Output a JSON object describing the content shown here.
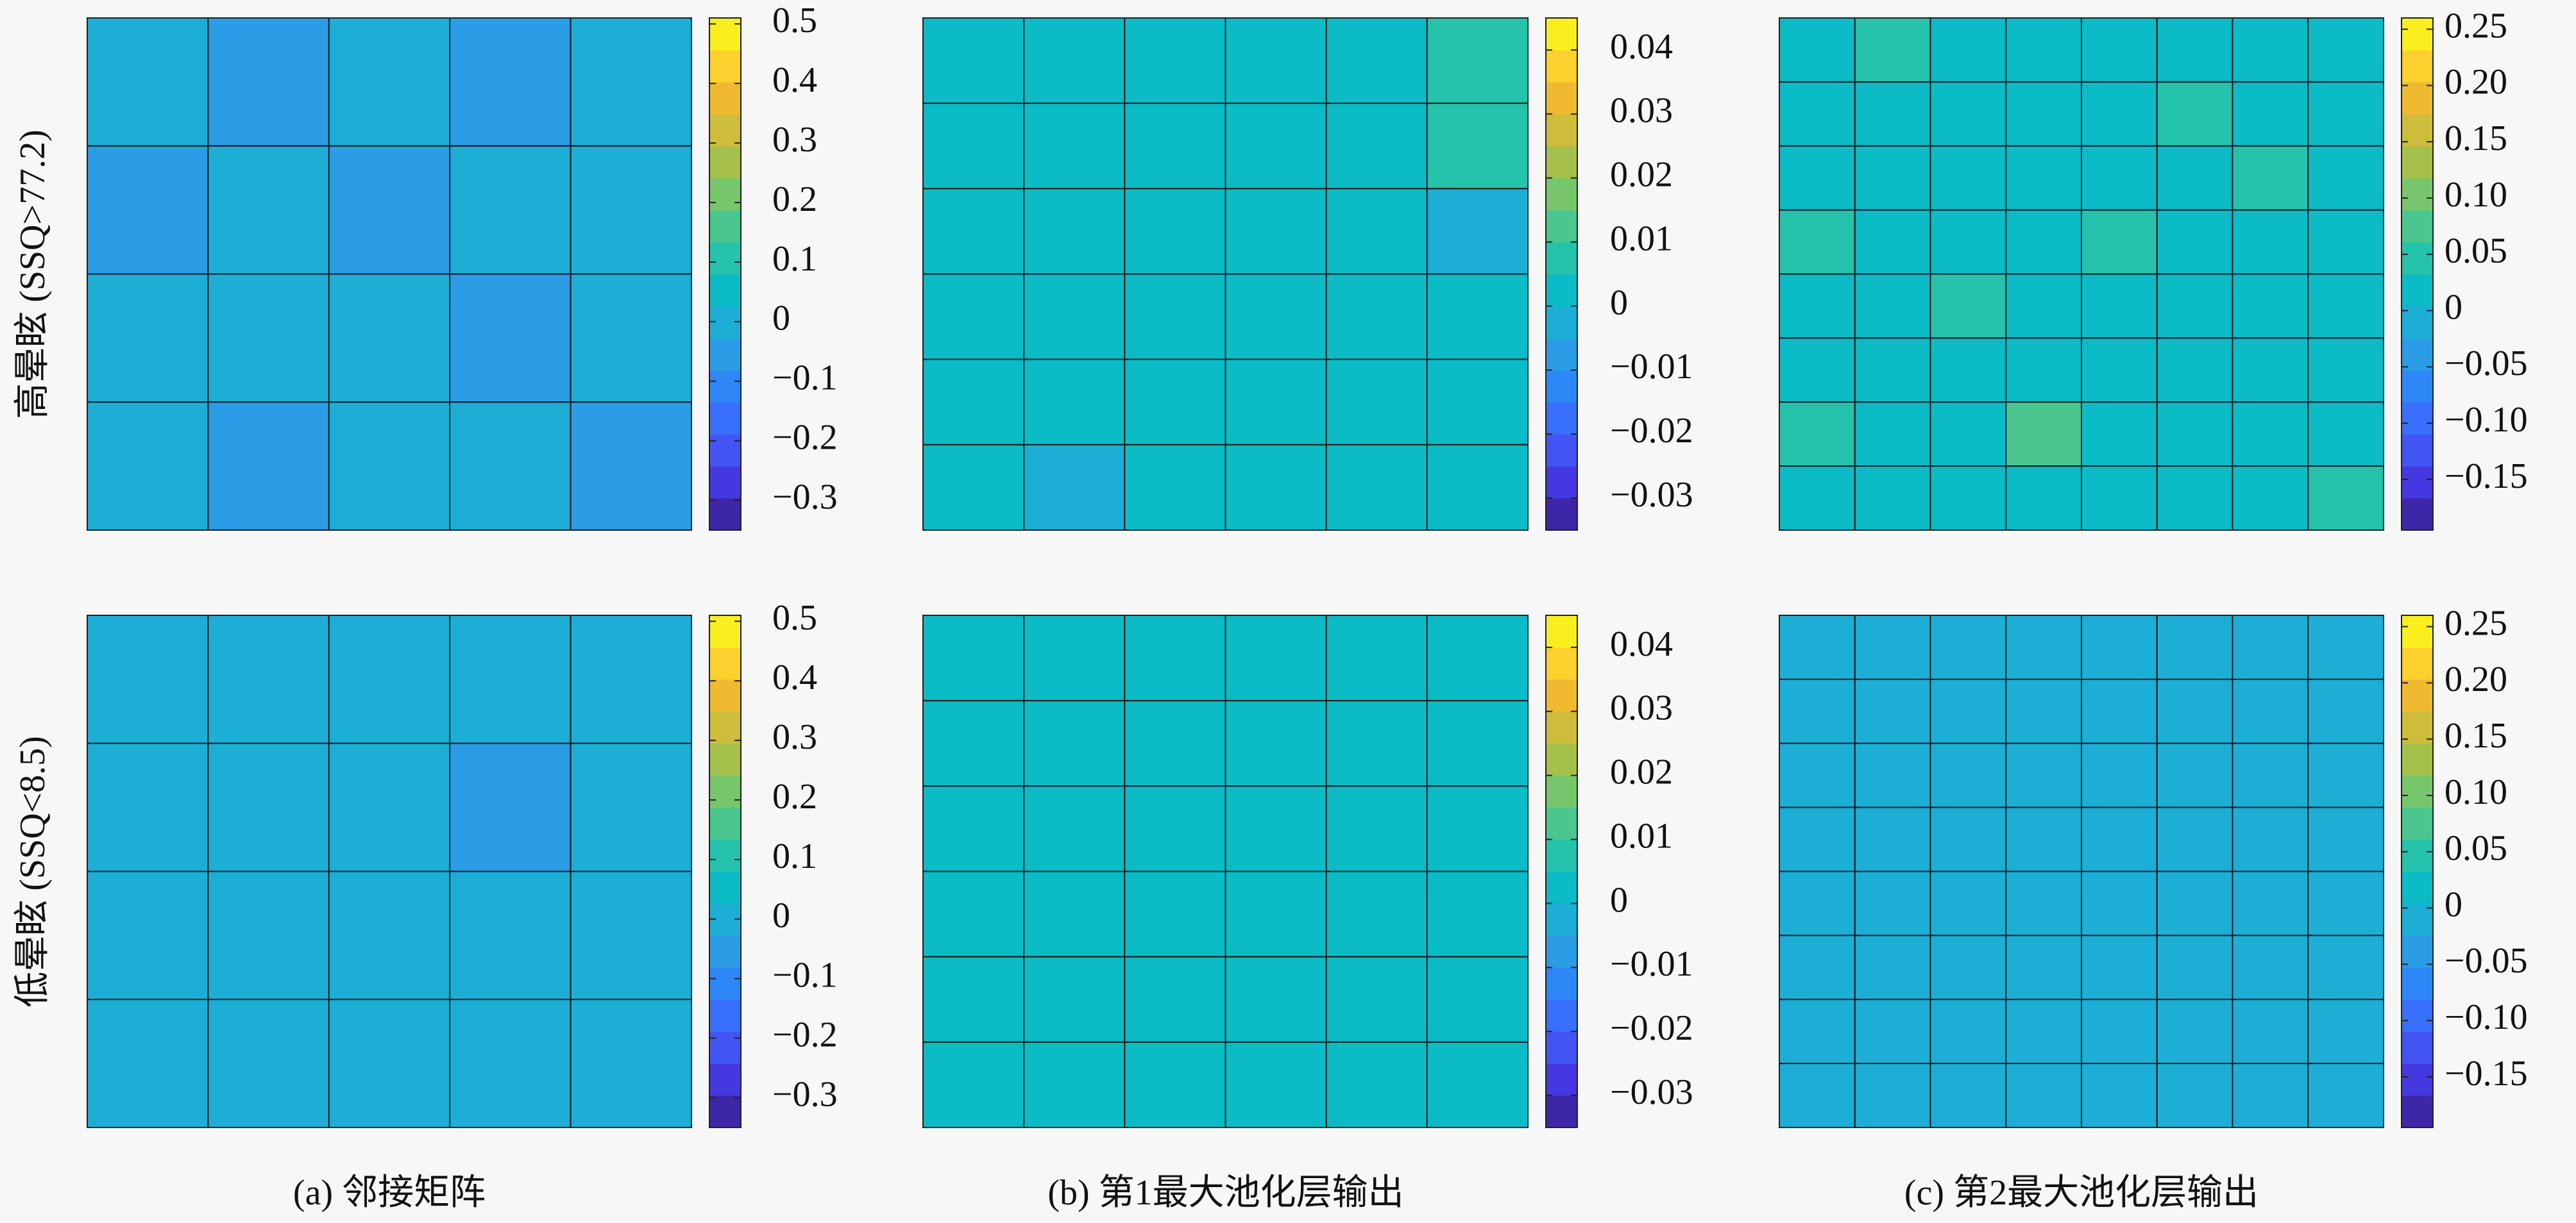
{
  "figure": {
    "row_labels": [
      "高晕眩 (SSQ>77.2)",
      "低晕眩 (SSQ<8.5)"
    ],
    "captions": [
      "(a) 邻接矩阵",
      "(b) 第1最大池化层输出",
      "(c) 第2最大池化层输出"
    ],
    "colormap": [
      "#3e26a8",
      "#4538e0",
      "#4354f4",
      "#386ffc",
      "#2e87f7",
      "#2b9ce6",
      "#1daed6",
      "#0bbbc5",
      "#25c3ac",
      "#4ac68e",
      "#77c66b",
      "#a5c04b",
      "#cebc3b",
      "#efb930",
      "#fcd02d",
      "#f9ef1f"
    ]
  },
  "chart_data": [
    {
      "type": "heatmap",
      "values": [
        [
          -0.02,
          -0.05,
          -0.02,
          -0.05,
          0.01
        ],
        [
          -0.05,
          0.01,
          -0.05,
          -0.02,
          0.02
        ],
        [
          0.01,
          -0.02,
          0.01,
          -0.05,
          -0.02
        ],
        [
          -0.02,
          -0.05,
          -0.02,
          0.01,
          -0.05
        ]
      ],
      "clim": [
        -0.35,
        0.51
      ],
      "cticks": [
        {
          "value": -0.3,
          "label": "−0.3"
        },
        {
          "value": -0.2,
          "label": "−0.2"
        },
        {
          "value": -0.1,
          "label": "−0.1"
        },
        0,
        0.1,
        0.2,
        0.3,
        0.4,
        0.5
      ]
    },
    {
      "type": "heatmap",
      "values": [
        [
          0.004,
          0.002,
          0.003,
          0.002,
          0.001,
          0.006
        ],
        [
          0.001,
          0.003,
          0.002,
          0.003,
          0.002,
          0.005
        ],
        [
          0.002,
          0.001,
          0.003,
          0.001,
          0.002,
          -0.002
        ],
        [
          0.003,
          0.001,
          0.002,
          0.001,
          0.001,
          0.002
        ],
        [
          0.001,
          0.002,
          0.001,
          0.003,
          0.002,
          0.001
        ],
        [
          0.002,
          -0.002,
          0,
          0,
          0,
          0
        ]
      ],
      "clim": [
        -0.035,
        0.045
      ],
      "cticks": [
        {
          "value": -0.03,
          "label": "−0.03"
        },
        {
          "value": -0.02,
          "label": "−0.02"
        },
        {
          "value": -0.01,
          "label": "−0.01"
        },
        0,
        0.01,
        0.02,
        0.03,
        0.04
      ]
    },
    {
      "type": "heatmap",
      "values": [
        [
          0.02,
          0.04,
          0.01,
          0.03,
          0.02,
          0.01,
          0.03,
          0.02
        ],
        [
          0.01,
          0.02,
          0.03,
          0.01,
          0.02,
          0.04,
          0.01,
          0.02
        ],
        [
          0.03,
          0.01,
          0.02,
          0.02,
          0.01,
          0.02,
          0.05,
          0.01
        ],
        [
          0.04,
          0.02,
          0.01,
          0.03,
          0.05,
          0.03,
          0.02,
          0.01
        ],
        [
          0.02,
          0.01,
          0.04,
          0.02,
          0.03,
          0.01,
          0.02,
          0.03
        ],
        [
          0.01,
          0.03,
          0.02,
          0.01,
          0.02,
          0.03,
          0.01,
          0.02
        ],
        [
          0.05,
          0.01,
          0.02,
          0.07,
          0.02,
          0.01,
          0.03,
          0.02
        ],
        [
          0.02,
          0.03,
          0.01,
          0.02,
          0.01,
          0.02,
          0.01,
          0.04
        ]
      ],
      "clim": [
        -0.195,
        0.26
      ],
      "cticks": [
        {
          "value": -0.15,
          "label": "−0.15"
        },
        {
          "value": -0.1,
          "label": "−0.10"
        },
        {
          "value": -0.05,
          "label": "−0.05"
        },
        0,
        0.05,
        {
          "value": 0.1,
          "label": "0.10"
        },
        0.15,
        {
          "value": 0.2,
          "label": "0.20"
        },
        0.25
      ]
    },
    {
      "type": "heatmap",
      "values": [
        [
          0,
          0,
          0,
          0,
          -0.02
        ],
        [
          0,
          0,
          0,
          -0.03,
          0
        ],
        [
          0,
          -0.02,
          0,
          -0.02,
          0
        ],
        [
          -0.02,
          0,
          0,
          0,
          0
        ]
      ],
      "clim": [
        -0.35,
        0.51
      ],
      "cticks": [
        {
          "value": -0.3,
          "label": "−0.3"
        },
        {
          "value": -0.2,
          "label": "−0.2"
        },
        {
          "value": -0.1,
          "label": "−0.1"
        },
        0,
        0.1,
        0.2,
        0.3,
        0.4,
        0.5
      ]
    },
    {
      "type": "heatmap",
      "values": [
        [
          0,
          0,
          0,
          0,
          0,
          0
        ],
        [
          0,
          0,
          0,
          0,
          0,
          0
        ],
        [
          0,
          0,
          0,
          0,
          0,
          0
        ],
        [
          0,
          0,
          0,
          0,
          0,
          0
        ],
        [
          0,
          0,
          0,
          0,
          0,
          0
        ],
        [
          0,
          0,
          0,
          0,
          0,
          0
        ]
      ],
      "clim": [
        -0.035,
        0.045
      ],
      "cticks": [
        {
          "value": -0.03,
          "label": "−0.03"
        },
        {
          "value": -0.02,
          "label": "−0.02"
        },
        {
          "value": -0.01,
          "label": "−0.01"
        },
        0,
        0.01,
        0.02,
        0.03,
        0.04
      ]
    },
    {
      "type": "heatmap",
      "values": [
        [
          0,
          0,
          0,
          0,
          0,
          0,
          0,
          0
        ],
        [
          0,
          0,
          0,
          0,
          0,
          0,
          0,
          0
        ],
        [
          0,
          0,
          0,
          0,
          0,
          0,
          0,
          0
        ],
        [
          0,
          0,
          0,
          0,
          0,
          0,
          0,
          0
        ],
        [
          0,
          0,
          0,
          0,
          0,
          0,
          0,
          0
        ],
        [
          0,
          0,
          0,
          0,
          0,
          0,
          0,
          0
        ],
        [
          0,
          0,
          0,
          0,
          0,
          0,
          0,
          0
        ],
        [
          0,
          0,
          0,
          0,
          0,
          0,
          0,
          0
        ]
      ],
      "clim": [
        -0.195,
        0.26
      ],
      "cticks": [
        {
          "value": -0.15,
          "label": "−0.15"
        },
        {
          "value": -0.1,
          "label": "−0.10"
        },
        {
          "value": -0.05,
          "label": "−0.05"
        },
        0,
        0.05,
        {
          "value": 0.1,
          "label": "0.10"
        },
        0.15,
        {
          "value": 0.2,
          "label": "0.20"
        },
        0.25
      ]
    }
  ]
}
